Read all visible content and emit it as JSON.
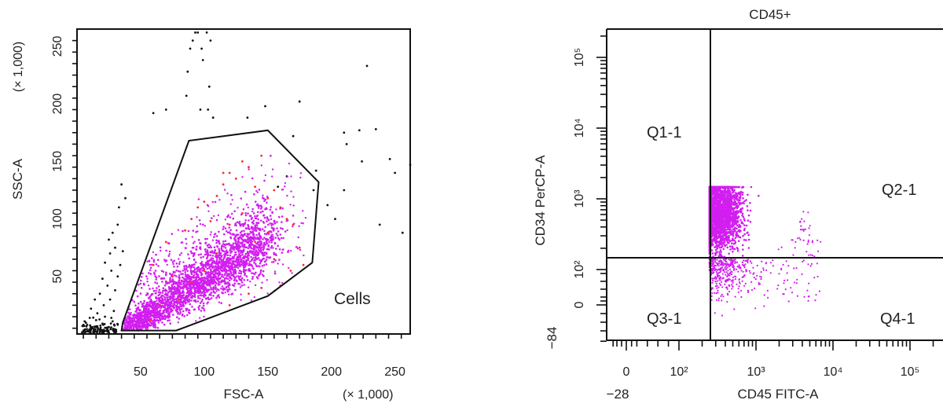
{
  "colors": {
    "population": "#d21ef0",
    "gated_highlight": "#ff2a2a",
    "outside": "#111111",
    "axis": "#111111"
  },
  "chart_data": [
    {
      "type": "scatter",
      "title": "",
      "xlabel": "FSC-A",
      "ylabel": "SSC-A",
      "xunit": "(× 1,000)",
      "yunit": "(× 1,000)",
      "xlim": [
        0,
        262
      ],
      "ylim": [
        0,
        265
      ],
      "xticks": [
        50,
        100,
        150,
        200,
        250
      ],
      "yticks": [
        50,
        100,
        150,
        200,
        250
      ],
      "gate": {
        "name": "Cells",
        "polygon": [
          [
            35,
            3
          ],
          [
            78,
            3
          ],
          [
            150,
            33
          ],
          [
            185,
            62
          ],
          [
            190,
            132
          ],
          [
            150,
            177
          ],
          [
            88,
            168
          ],
          [
            36,
            10
          ]
        ]
      },
      "series": [
        {
          "role": "outside-gate",
          "color": "#111111",
          "points": [
            [
              5,
              3
            ],
            [
              8,
              8
            ],
            [
              12,
              5
            ],
            [
              15,
              12
            ],
            [
              18,
              4
            ],
            [
              20,
              9
            ],
            [
              22,
              15
            ],
            [
              25,
              6
            ],
            [
              28,
              11
            ],
            [
              30,
              4
            ],
            [
              10,
              14
            ],
            [
              14,
              2
            ],
            [
              24,
              2
            ],
            [
              27,
              14
            ],
            [
              32,
              8
            ],
            [
              6,
              11
            ],
            [
              11,
              22
            ],
            [
              16,
              18
            ],
            [
              21,
              25
            ],
            [
              26,
              30
            ],
            [
              29,
              20
            ],
            [
              18,
              35
            ],
            [
              24,
              42
            ],
            [
              30,
              38
            ],
            [
              14,
              30
            ],
            [
              20,
              48
            ],
            [
              27,
              55
            ],
            [
              32,
              50
            ],
            [
              22,
              62
            ],
            [
              26,
              70
            ],
            [
              30,
              75
            ],
            [
              34,
              60
            ],
            [
              28,
              88
            ],
            [
              32,
              95
            ],
            [
              36,
              72
            ],
            [
              25,
              82
            ],
            [
              33,
              110
            ],
            [
              38,
              118
            ],
            [
              35,
              130
            ],
            [
              60,
              192
            ],
            [
              70,
              195
            ],
            [
              87,
              228
            ],
            [
              89,
              248
            ],
            [
              91,
              255
            ],
            [
              93,
              262
            ],
            [
              95,
              262
            ],
            [
              98,
              248
            ],
            [
              99,
              238
            ],
            [
              102,
              262
            ],
            [
              105,
              255
            ],
            [
              104,
              215
            ],
            [
              107,
              188
            ],
            [
              86,
              207
            ],
            [
              97,
              195
            ],
            [
              103,
              195
            ],
            [
              134,
              188
            ],
            [
              148,
              198
            ],
            [
              158,
              128
            ],
            [
              170,
              172
            ],
            [
              175,
              202
            ],
            [
              165,
              137
            ],
            [
              188,
              142
            ],
            [
              186,
              125
            ],
            [
              210,
              125
            ],
            [
              197,
              112
            ],
            [
              203,
              100
            ],
            [
              212,
              165
            ],
            [
              222,
              177
            ],
            [
              228,
              233
            ],
            [
              235,
              178
            ],
            [
              224,
              150
            ],
            [
              210,
              175
            ],
            [
              250,
              140
            ],
            [
              246,
              152
            ],
            [
              238,
              95
            ],
            [
              262,
              147
            ],
            [
              256,
              88
            ]
          ]
        },
        {
          "role": "gated-population",
          "color": "#d21ef0",
          "density": "main"
        },
        {
          "role": "gated-highlight",
          "color": "#ff2a2a",
          "points": [
            [
              70,
              80
            ],
            [
              85,
              90
            ],
            [
              90,
              100
            ],
            [
              95,
              110
            ],
            [
              100,
              115
            ],
            [
              110,
              120
            ],
            [
              115,
              130
            ],
            [
              120,
              140
            ],
            [
              125,
              135
            ],
            [
              130,
              150
            ],
            [
              135,
              145
            ],
            [
              140,
              128
            ],
            [
              145,
              155
            ],
            [
              150,
              118
            ],
            [
              155,
              125
            ],
            [
              160,
              110
            ],
            [
              165,
              100
            ],
            [
              170,
              95
            ],
            [
              175,
              75
            ],
            [
              178,
              60
            ],
            [
              168,
              55
            ],
            [
              160,
              42
            ],
            [
              155,
              65
            ],
            [
              145,
              40
            ],
            [
              140,
              80
            ],
            [
              130,
              105
            ],
            [
              120,
              95
            ],
            [
              110,
              70
            ],
            [
              100,
              55
            ],
            [
              90,
              45
            ],
            [
              80,
              30
            ],
            [
              60,
              60
            ],
            [
              65,
              25
            ],
            [
              75,
              50
            ],
            [
              58,
              12
            ],
            [
              120,
              25
            ],
            [
              135,
              35
            ],
            [
              150,
              88
            ],
            [
              105,
              98
            ],
            [
              115,
              140
            ]
          ]
        }
      ],
      "annotation": "Cells"
    },
    {
      "type": "scatter",
      "title": "CD45+",
      "xlabel": "CD45 FITC-A",
      "ylabel": "CD34 PerCP-A",
      "x_min_label": "−28",
      "y_min_label": "−84",
      "xscale": "biexponential",
      "yscale": "biexponential",
      "xticks": [
        "0",
        "10²",
        "10³",
        "10⁴",
        "10⁵"
      ],
      "yticks": [
        "0",
        "10²",
        "10³",
        "10⁴",
        "10⁵"
      ],
      "quadrant_gate": {
        "x": 190,
        "y": 145
      },
      "quadrants": [
        "Q1-1",
        "Q2-1",
        "Q3-1",
        "Q4-1"
      ],
      "series": [
        {
          "role": "events",
          "color": "#d21ef0",
          "center": [
            500,
            500
          ]
        }
      ]
    }
  ]
}
